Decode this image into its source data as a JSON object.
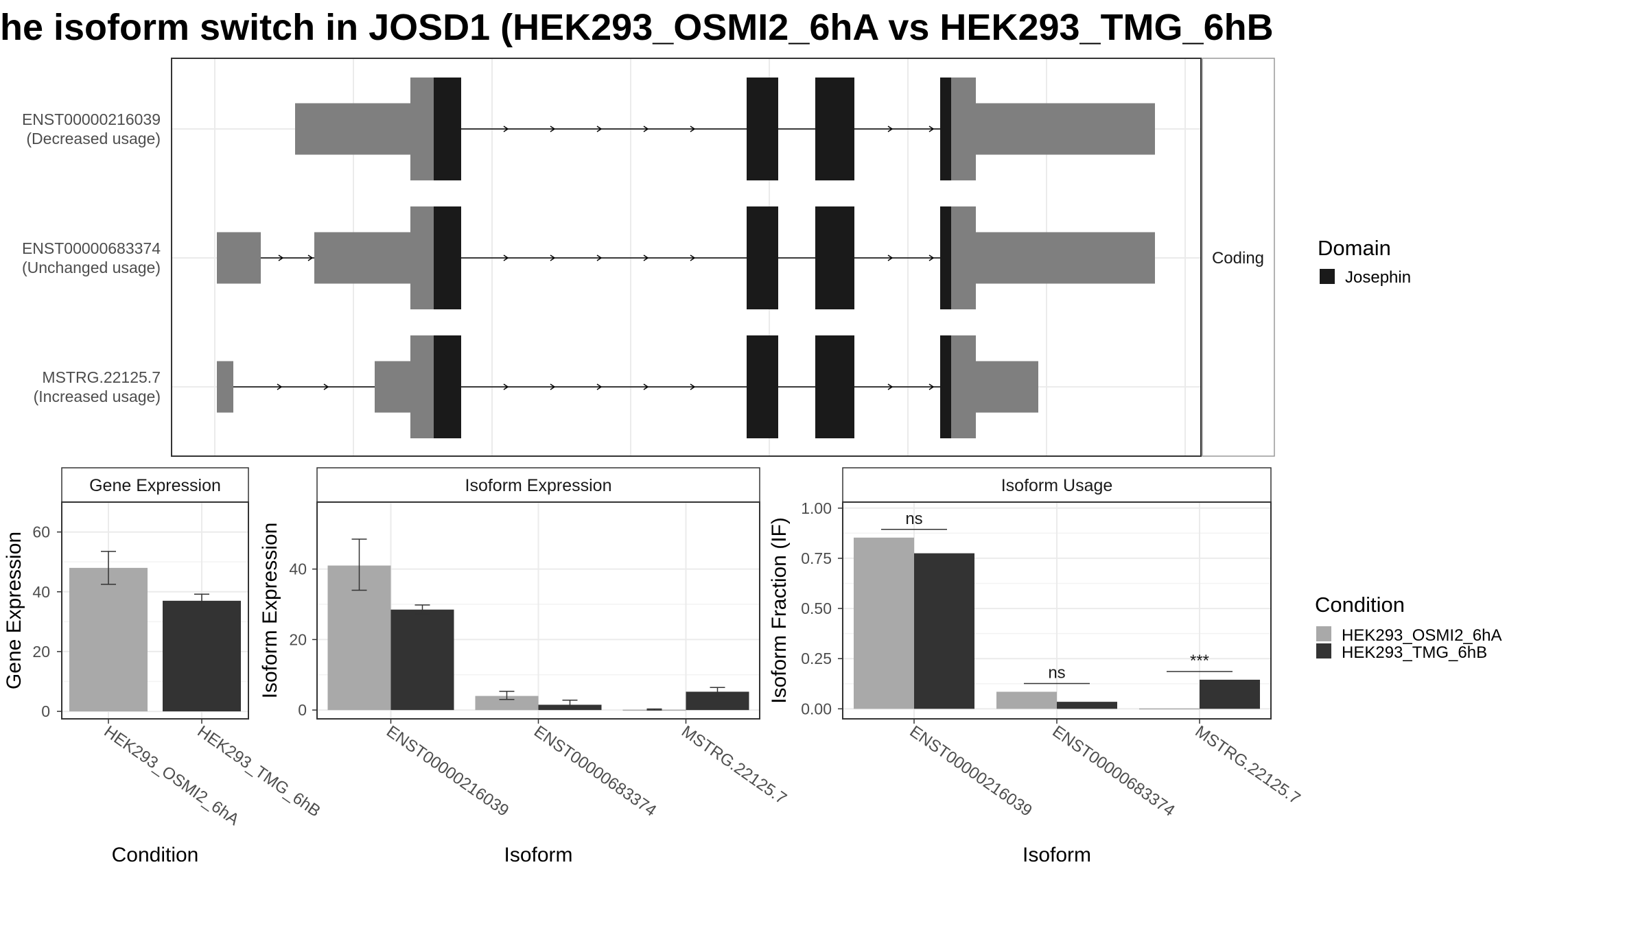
{
  "title": "he isoform switch in JOSD1 (HEK293_OSMI2_6hA vs HEK293_TMG_6hB",
  "colors": {
    "condition_a": "#a9a9a9",
    "condition_b": "#333333",
    "utr": "#7f7f7f",
    "domain": "#1a1a1a",
    "grid": "#ebebeb",
    "strip_bg": "#ffffff"
  },
  "chart_data": [
    {
      "type": "transcript-structure",
      "panel_label": "Coding",
      "transcripts": [
        {
          "id": "ENST00000216039",
          "status": "(Decreased usage)"
        },
        {
          "id": "ENST00000683374",
          "status": "(Unchanged usage)"
        },
        {
          "id": "MSTRG.22125.7",
          "status": "(Increased usage)"
        }
      ],
      "legend": {
        "title": "Domain",
        "entries": [
          {
            "label": "Josephin",
            "color": "#1a1a1a"
          }
        ]
      }
    },
    {
      "type": "bar",
      "title": "Gene Expression",
      "xlabel": "Condition",
      "ylabel": "Gene Expression",
      "categories": [
        "HEK293_OSMI2_6hA",
        "HEK293_TMG_6hB"
      ],
      "values": [
        48,
        37
      ],
      "errors": [
        [
          42.5,
          53.5
        ],
        [
          34.5,
          39.2
        ]
      ],
      "ylim": [
        -2.5,
        70
      ],
      "yticks": [
        0,
        20,
        40,
        60
      ],
      "ytick_labels": [
        "0",
        "20",
        "40",
        "60"
      ]
    },
    {
      "type": "bar",
      "title": "Isoform Expression",
      "xlabel": "Isoform",
      "ylabel": "Isoform Expression",
      "categories": [
        "ENST00000216039",
        "ENST00000683374",
        "MSTRG.22125.7"
      ],
      "series": [
        {
          "values": [
            41,
            4,
            0.1
          ],
          "errors": [
            [
              34,
              48.5
            ],
            [
              3,
              5.3
            ],
            [
              0,
              0.3
            ]
          ]
        },
        {
          "values": [
            28.5,
            1.5,
            5.2
          ],
          "errors": [
            [
              27.3,
              29.8
            ],
            [
              0.5,
              2.8
            ],
            [
              4,
              6.4
            ]
          ]
        }
      ],
      "ylim": [
        -2.5,
        59
      ],
      "yticks": [
        0,
        20,
        40
      ],
      "ytick_labels": [
        "0",
        "20",
        "40"
      ]
    },
    {
      "type": "bar",
      "title": "Isoform Usage",
      "xlabel": "Isoform",
      "ylabel": "Isoform Fraction (IF)",
      "categories": [
        "ENST00000216039",
        "ENST00000683374",
        "MSTRG.22125.7"
      ],
      "series": [
        {
          "values": [
            0.853,
            0.085,
            0.002
          ]
        },
        {
          "values": [
            0.775,
            0.035,
            0.145
          ]
        }
      ],
      "significance": [
        "ns",
        "ns",
        "***"
      ],
      "ylim": [
        -0.05,
        1.03
      ],
      "yticks": [
        0,
        0.25,
        0.5,
        0.75,
        1.0
      ],
      "ytick_labels": [
        "0.00",
        "0.25",
        "0.50",
        "0.75",
        "1.00"
      ]
    }
  ],
  "legend_condition": {
    "title": "Condition",
    "entries": [
      {
        "label": "HEK293_OSMI2_6hA",
        "color": "#a9a9a9"
      },
      {
        "label": "HEK293_TMG_6hB",
        "color": "#333333"
      }
    ]
  }
}
